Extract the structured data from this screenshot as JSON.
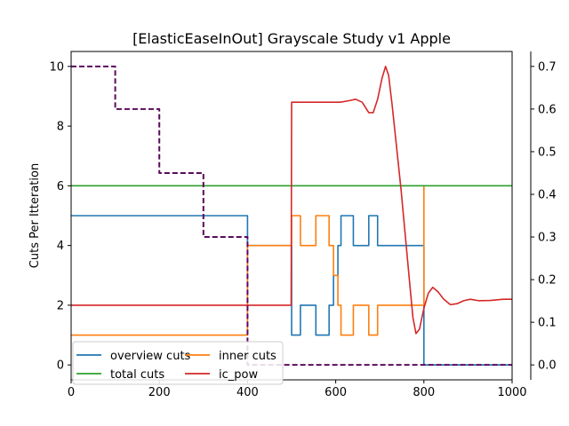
{
  "chart_data": {
    "type": "line",
    "title": "[ElasticEaseInOut] Grayscale Study v1 Apple",
    "xlabel": "",
    "ylabel": "Cuts Per Itteration",
    "xlim": [
      0,
      1000
    ],
    "ylim": [
      -0.5,
      10.5
    ],
    "y2lim": [
      -0.035,
      0.735
    ],
    "x_ticks": [
      0,
      200,
      400,
      600,
      800,
      1000
    ],
    "y_ticks": [
      0,
      2,
      4,
      6,
      8,
      10
    ],
    "y2_ticks": [
      0.0,
      0.1,
      0.2,
      0.3,
      0.4,
      0.5,
      0.6,
      0.7
    ],
    "grid": false,
    "legend": {
      "placement": "lower-left",
      "columns": 2,
      "entries": [
        "overview cuts",
        "inner cuts",
        "total cuts",
        "ic_pow"
      ]
    },
    "series": [
      {
        "name": "overview cuts",
        "color": "#1f77b4",
        "axis": "left",
        "style": "steps",
        "points": [
          [
            0,
            5
          ],
          [
            400,
            5
          ],
          [
            400,
            4
          ],
          [
            500,
            4
          ],
          [
            500,
            1
          ],
          [
            520,
            1
          ],
          [
            520,
            2
          ],
          [
            555,
            2
          ],
          [
            555,
            1
          ],
          [
            585,
            1
          ],
          [
            585,
            2
          ],
          [
            595,
            2
          ],
          [
            595,
            3
          ],
          [
            605,
            3
          ],
          [
            605,
            4
          ],
          [
            612,
            4
          ],
          [
            612,
            5
          ],
          [
            640,
            5
          ],
          [
            640,
            4
          ],
          [
            675,
            4
          ],
          [
            675,
            5
          ],
          [
            695,
            5
          ],
          [
            695,
            4
          ],
          [
            800,
            4
          ],
          [
            800,
            0
          ],
          [
            1000,
            0
          ]
        ]
      },
      {
        "name": "inner cuts",
        "color": "#ff7f0e",
        "axis": "left",
        "style": "steps",
        "points": [
          [
            0,
            1
          ],
          [
            400,
            1
          ],
          [
            400,
            4
          ],
          [
            500,
            4
          ],
          [
            500,
            5
          ],
          [
            520,
            5
          ],
          [
            520,
            4
          ],
          [
            555,
            4
          ],
          [
            555,
            5
          ],
          [
            585,
            5
          ],
          [
            585,
            4
          ],
          [
            595,
            4
          ],
          [
            595,
            3
          ],
          [
            605,
            3
          ],
          [
            605,
            2
          ],
          [
            612,
            2
          ],
          [
            612,
            1
          ],
          [
            640,
            1
          ],
          [
            640,
            2
          ],
          [
            675,
            2
          ],
          [
            675,
            1
          ],
          [
            695,
            1
          ],
          [
            695,
            2
          ],
          [
            800,
            2
          ],
          [
            800,
            6
          ]
        ]
      },
      {
        "name": "total cuts",
        "color": "#2ca02c",
        "axis": "left",
        "style": "line",
        "points": [
          [
            0,
            6
          ],
          [
            1000,
            6
          ]
        ]
      },
      {
        "name": "ic_pow",
        "color": "#d62728",
        "axis": "left",
        "style": "line",
        "points": [
          [
            0,
            2
          ],
          [
            400,
            2
          ],
          [
            499,
            2
          ],
          [
            500,
            8.8
          ],
          [
            540,
            8.8
          ],
          [
            580,
            8.8
          ],
          [
            610,
            8.8
          ],
          [
            630,
            8.85
          ],
          [
            645,
            8.9
          ],
          [
            660,
            8.8
          ],
          [
            675,
            8.45
          ],
          [
            685,
            8.45
          ],
          [
            695,
            8.9
          ],
          [
            705,
            9.6
          ],
          [
            713,
            10.0
          ],
          [
            720,
            9.7
          ],
          [
            728,
            8.7
          ],
          [
            738,
            7.3
          ],
          [
            748,
            5.9
          ],
          [
            758,
            4.3
          ],
          [
            768,
            2.7
          ],
          [
            775,
            1.6
          ],
          [
            782,
            1.05
          ],
          [
            790,
            1.2
          ],
          [
            800,
            1.9
          ],
          [
            810,
            2.4
          ],
          [
            820,
            2.6
          ],
          [
            832,
            2.45
          ],
          [
            845,
            2.2
          ],
          [
            860,
            2.02
          ],
          [
            875,
            2.05
          ],
          [
            890,
            2.15
          ],
          [
            905,
            2.2
          ],
          [
            925,
            2.15
          ],
          [
            950,
            2.16
          ],
          [
            980,
            2.2
          ],
          [
            1000,
            2.2
          ]
        ]
      },
      {
        "name": "",
        "color": "#5c0a5c",
        "axis": "right",
        "style": "dashed-steps",
        "points": [
          [
            0,
            0.7
          ],
          [
            100,
            0.7
          ],
          [
            100,
            0.6
          ],
          [
            200,
            0.6
          ],
          [
            200,
            0.45
          ],
          [
            300,
            0.45
          ],
          [
            300,
            0.3
          ],
          [
            400,
            0.3
          ],
          [
            400,
            0.0
          ],
          [
            1000,
            0.0
          ]
        ]
      }
    ]
  }
}
